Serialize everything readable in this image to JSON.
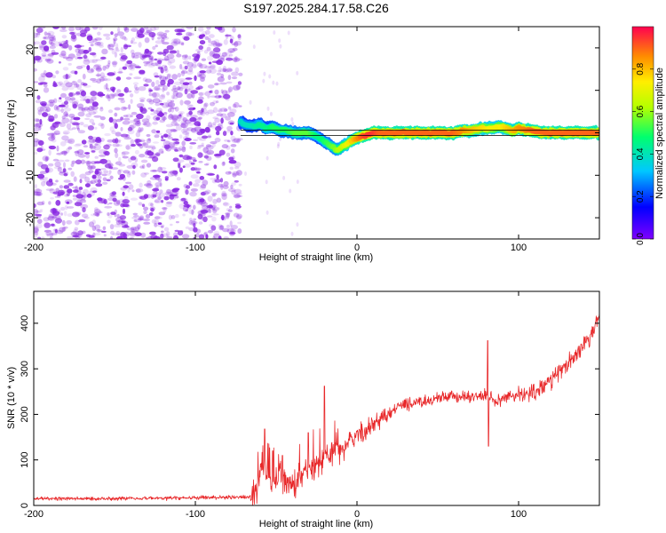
{
  "figure": {
    "title": "S197.2025.284.17.58.C26"
  },
  "colors": {
    "snr_line": "#e8282a",
    "speckle": "#8a2be2",
    "axis": "#000000",
    "background": "#ffffff"
  },
  "chart_data": [
    {
      "type": "heatmap",
      "title": "S197.2025.284.17.58.C26",
      "xlabel": "Height of straight line (km)",
      "ylabel": "Frequency (Hz)",
      "xlim": [
        -200,
        150
      ],
      "ylim": [
        -25,
        25
      ],
      "xticks": [
        -200,
        -100,
        0,
        100
      ],
      "yticks": [
        -20,
        -10,
        0,
        10,
        20
      ],
      "colorbar": {
        "label": "Normalized spectral amplitude",
        "range": [
          0,
          1
        ],
        "ticks": [
          0.0,
          0.2,
          0.4,
          0.6,
          0.8
        ],
        "colormap": [
          "#7f00ff",
          "#0000ff",
          "#00c8ff",
          "#00ff6e",
          "#b4ff00",
          "#ffee00",
          "#ff8c00",
          "#ff0050"
        ]
      },
      "noise_region": {
        "x_from": -200,
        "x_to": -72,
        "level": 0.2
      },
      "ridge": {
        "x": [
          -72,
          -66,
          -60,
          -56,
          -52,
          -48,
          -44,
          -38,
          -30,
          -24,
          -20,
          -16,
          -13,
          -10,
          -6,
          -2,
          2,
          6,
          10,
          14,
          20,
          30,
          40,
          50,
          60,
          66,
          70,
          76,
          84,
          88,
          92,
          96,
          100,
          108,
          115,
          125,
          140,
          150
        ],
        "y": [
          2.5,
          1.5,
          2.0,
          1.0,
          1.5,
          0.5,
          0.5,
          0.0,
          0.0,
          -1.0,
          -2.0,
          -3.0,
          -4.0,
          -3.5,
          -2.5,
          -1.5,
          -1.0,
          -0.5,
          0.0,
          0.0,
          0.0,
          0.0,
          0.0,
          0.0,
          0.0,
          0.5,
          0.5,
          1.0,
          1.0,
          1.5,
          1.0,
          0.5,
          1.0,
          0.5,
          0.0,
          0.0,
          0.0,
          0.0
        ],
        "amplitude": [
          0.35,
          0.35,
          0.4,
          0.4,
          0.45,
          0.45,
          0.45,
          0.5,
          0.5,
          0.4,
          0.45,
          0.5,
          0.55,
          0.6,
          0.7,
          0.8,
          0.9,
          0.95,
          0.95,
          0.9,
          0.9,
          0.9,
          0.9,
          0.9,
          0.9,
          0.85,
          0.8,
          0.75,
          0.7,
          0.7,
          0.75,
          0.8,
          0.85,
          0.9,
          0.9,
          0.9,
          0.9,
          0.9
        ]
      },
      "fit_line": {
        "x": [
          -72,
          150
        ],
        "y": [
          0,
          0
        ]
      }
    },
    {
      "type": "line",
      "title": "",
      "xlabel": "Height of straight line (km)",
      "ylabel": "SNR (10 * v/v)",
      "xlim": [
        -200,
        150
      ],
      "ylim": [
        0,
        470
      ],
      "xticks": [
        -200,
        -100,
        0,
        100
      ],
      "yticks": [
        0,
        100,
        200,
        300,
        400
      ],
      "series": [
        {
          "name": "SNR",
          "x": [
            -200,
            -180,
            -160,
            -140,
            -120,
            -100,
            -80,
            -66,
            -62,
            -59,
            -56,
            -52,
            -48,
            -44,
            -40,
            -36,
            -32,
            -28,
            -24,
            -20,
            -16,
            -12,
            -8,
            -4,
            0,
            5,
            10,
            15,
            20,
            25,
            30,
            40,
            50,
            60,
            70,
            78,
            81,
            82,
            86,
            90,
            95,
            100,
            105,
            110,
            115,
            120,
            125,
            130,
            135,
            140,
            145,
            150
          ],
          "values": [
            15,
            15,
            15,
            16,
            16,
            17,
            18,
            18,
            35,
            95,
            60,
            40,
            75,
            55,
            45,
            50,
            75,
            80,
            90,
            100,
            120,
            130,
            120,
            145,
            155,
            160,
            180,
            190,
            200,
            215,
            222,
            228,
            235,
            240,
            238,
            240,
            245,
            240,
            225,
            235,
            240,
            240,
            245,
            250,
            262,
            275,
            290,
            310,
            330,
            350,
            375,
            415
          ],
          "spikes": [
            {
              "x": -57,
              "value": 168
            },
            {
              "x": -52,
              "value": 120
            },
            {
              "x": -46,
              "value": 110
            },
            {
              "x": -30,
              "value": 160
            },
            {
              "x": -20,
              "value": 262
            },
            {
              "x": 81,
              "value": 362
            },
            {
              "x": 81.5,
              "value": 130
            }
          ]
        }
      ]
    }
  ]
}
